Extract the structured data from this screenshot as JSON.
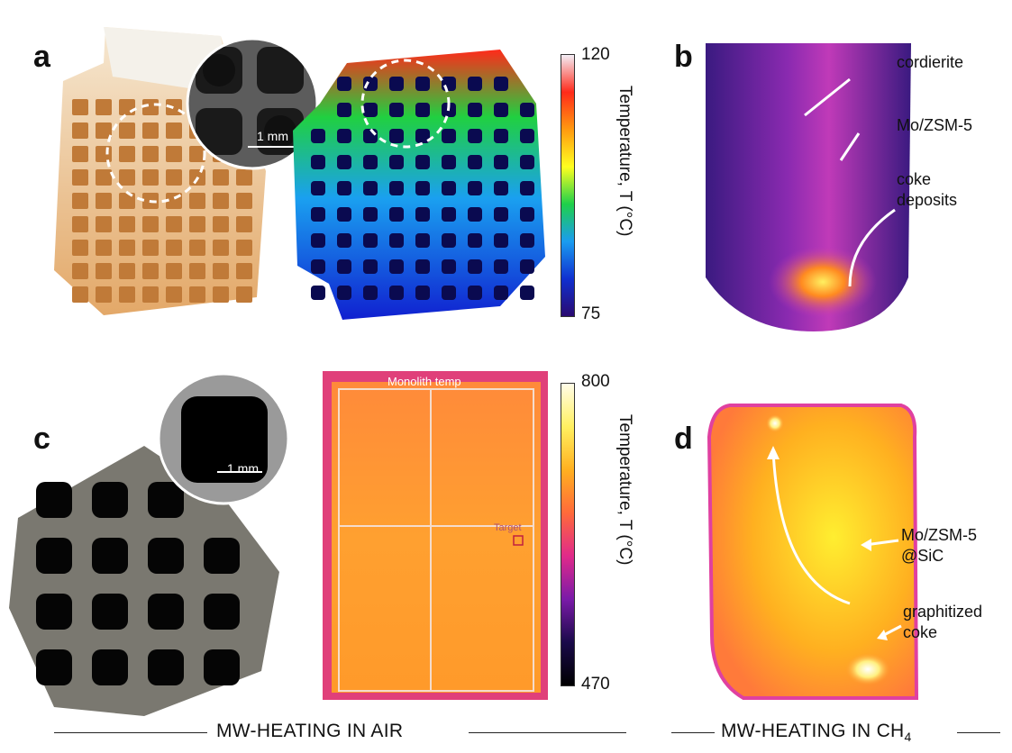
{
  "panels": {
    "a": {
      "letter": "a",
      "scale_bar": "1 mm",
      "colorbar": {
        "max": "120",
        "min": "75",
        "title": "Temperature, T (°C)",
        "colors": [
          "#f3eef6",
          "#ff2a1a",
          "#ff9a10",
          "#ffff20",
          "#1ed04a",
          "#1a9cf0",
          "#1030d0",
          "#2a0a70"
        ]
      }
    },
    "b": {
      "letter": "b",
      "annotations": {
        "cordierite": "cordierite",
        "mozsm5": "Mo/ZSM-5",
        "coke": "coke\ndeposits"
      }
    },
    "c": {
      "letter": "c",
      "scale_bar": "1 mm",
      "thermal_label": "Monolith temp",
      "target_label": "Target",
      "colorbar": {
        "max": "800",
        "min": "470",
        "title": "Temperature, T (°C)",
        "colors": [
          "#fffce8",
          "#fff060",
          "#ffb020",
          "#ff6a3a",
          "#e02a8a",
          "#7a1aa8",
          "#1a0a4a",
          "#000000"
        ]
      }
    },
    "d": {
      "letter": "d",
      "annotations": {
        "mozsm5": "Mo/ZSM-5\n@SiC",
        "coke": "graphitized\ncoke"
      }
    }
  },
  "footer": {
    "left": "MW-HEATING IN AIR",
    "right_prefix": "MW-HEATING IN CH",
    "right_sub": "4"
  },
  "colors": {
    "accent_dashed": "#ffffff",
    "arrow": "#ffffff"
  }
}
